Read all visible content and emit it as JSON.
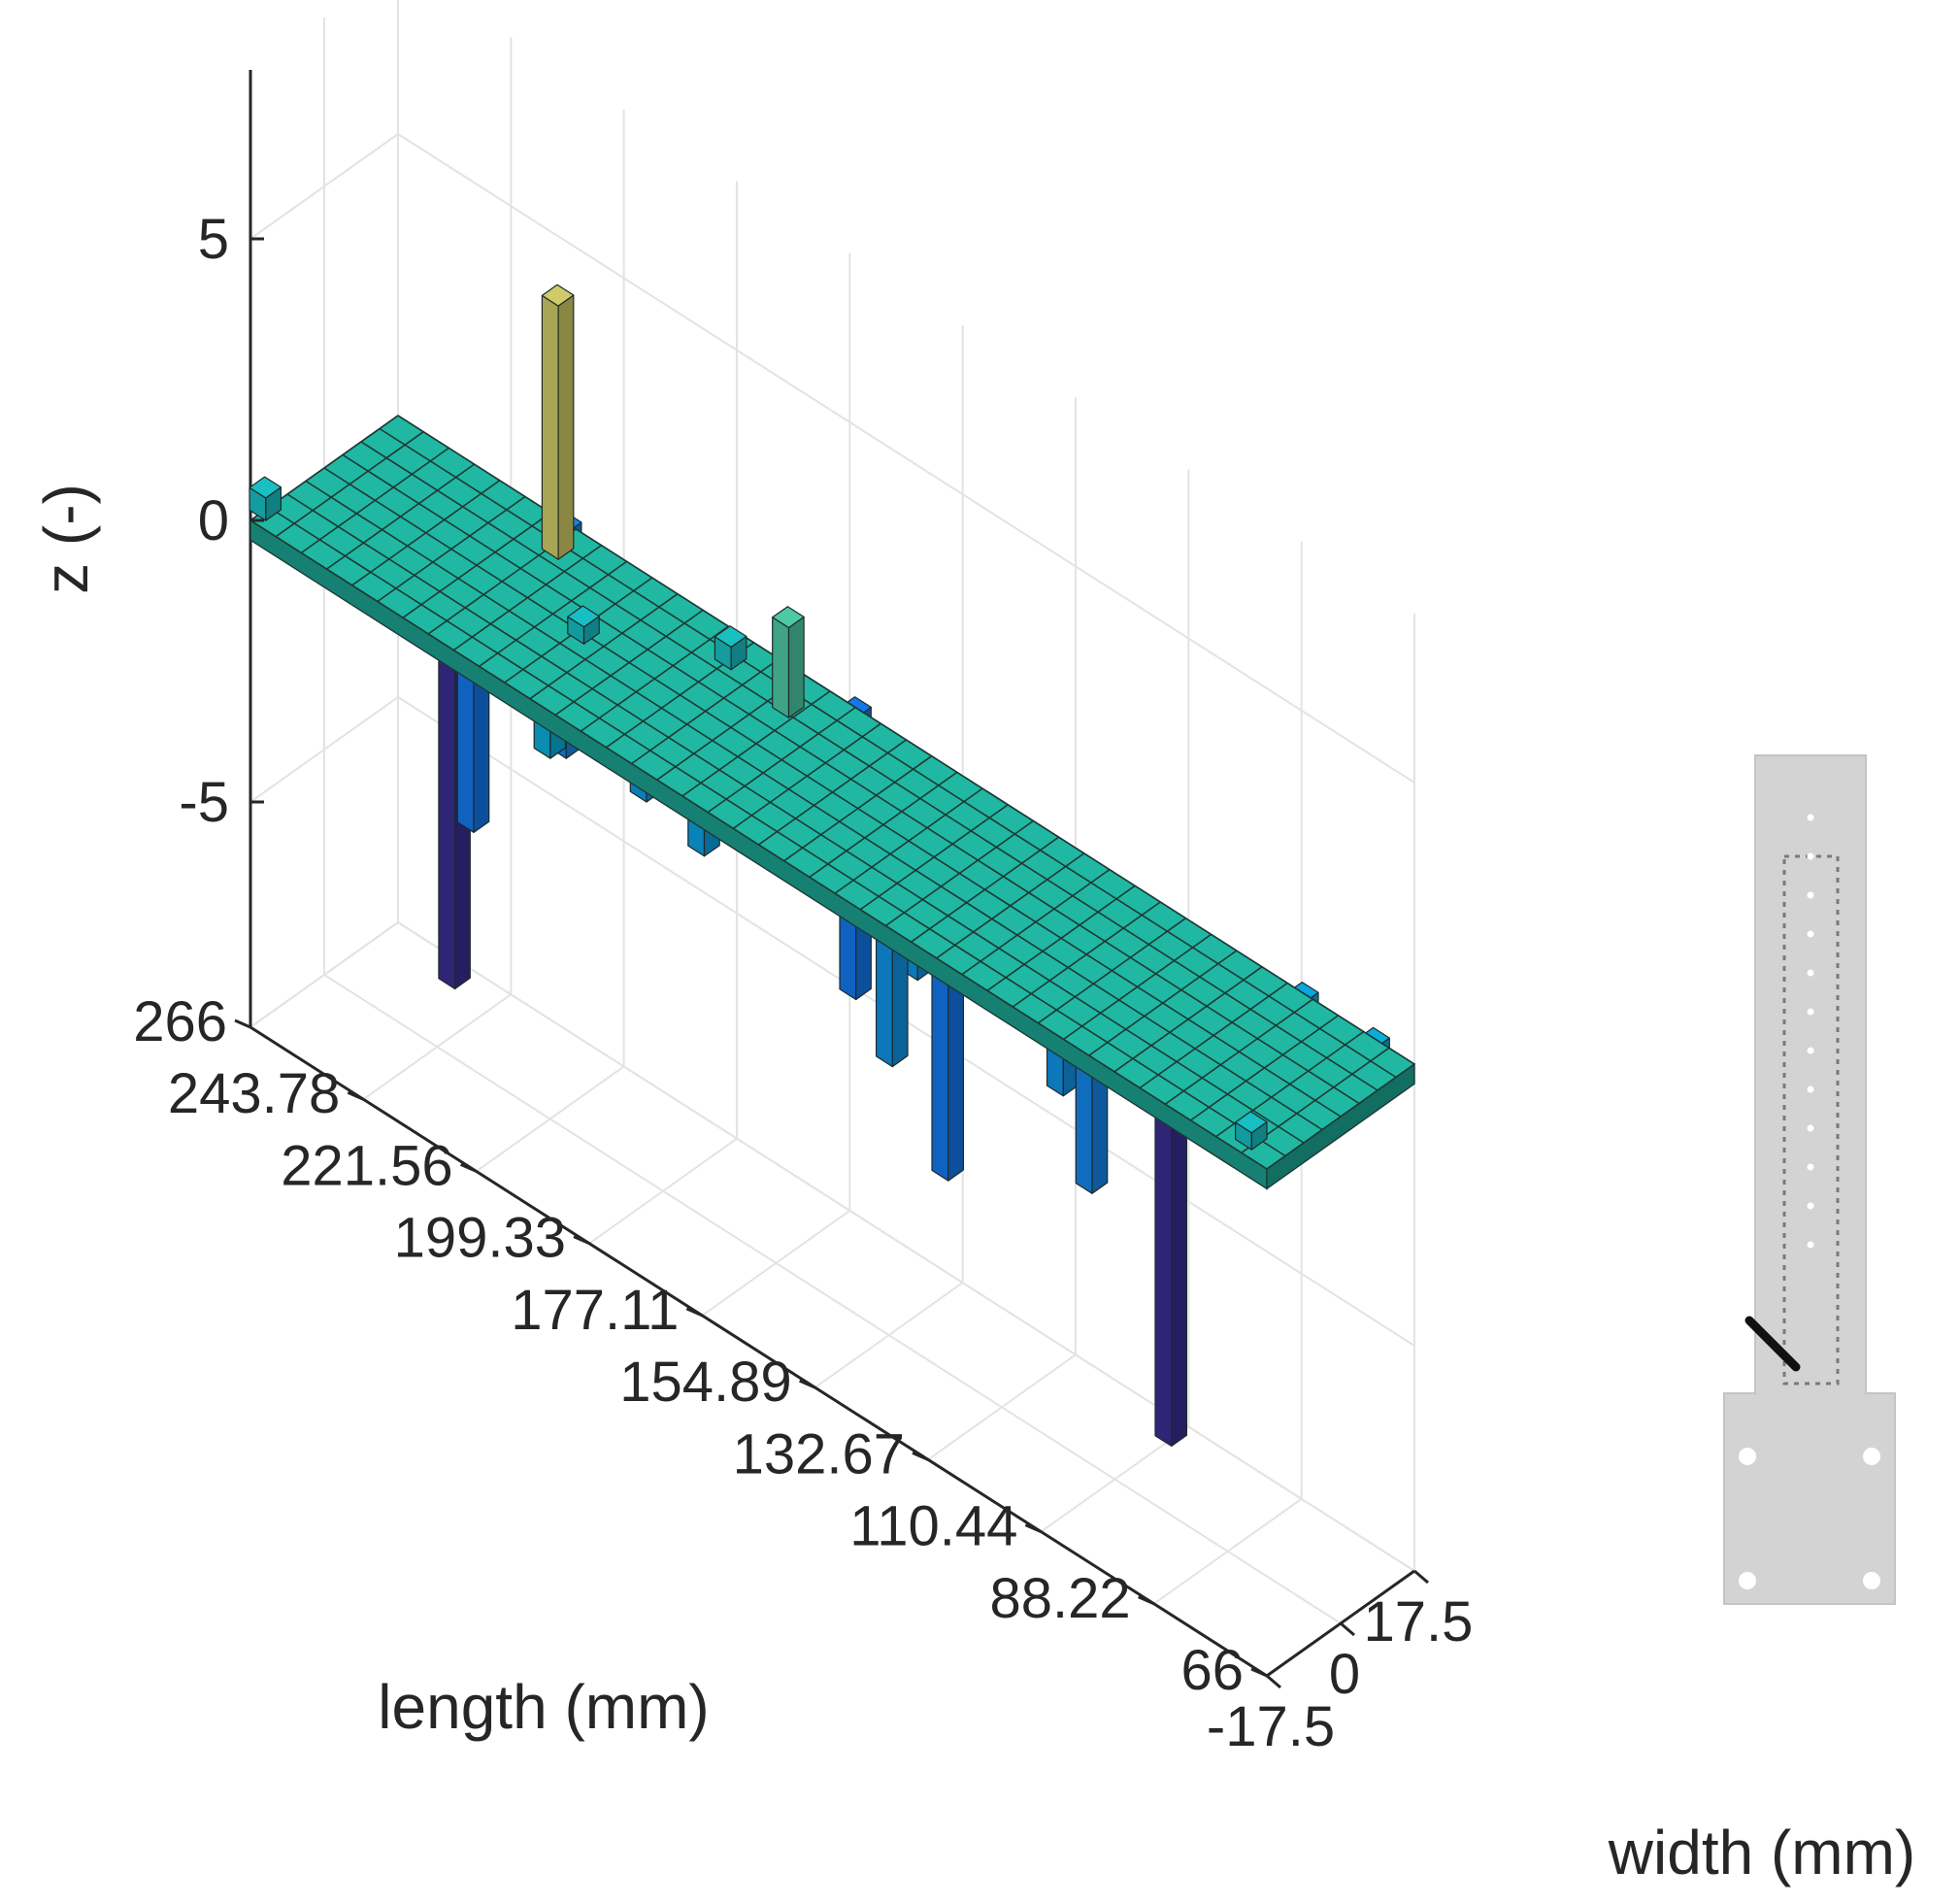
{
  "chart_data": {
    "type": "bar3d",
    "zlabel": "z (-)",
    "xlabel": "length (mm)",
    "ylabel": "width (mm)",
    "z_ticks": [
      "5",
      "0",
      "-5"
    ],
    "z_range": [
      -9,
      8
    ],
    "length_ticks": [
      "266",
      "243.78",
      "221.56",
      "199.33",
      "177.11",
      "154.89",
      "132.67",
      "110.44",
      "88.22",
      "66"
    ],
    "length_range": [
      66,
      266
    ],
    "width_ticks": [
      "-17.5",
      "0",
      "17.5"
    ],
    "width_range": [
      -17.5,
      17.5
    ],
    "grid": true,
    "colormap": "parula",
    "baseline_z": 0,
    "bars": [
      {
        "length": 266.0,
        "width": -14.0,
        "z": 0.4
      },
      {
        "length": 252.0,
        "width": 14.0,
        "z": -9.0
      },
      {
        "length": 240.0,
        "width": 4.0,
        "z": -5.0
      },
      {
        "length": 233.0,
        "width": 17.5,
        "z": -4.0
      },
      {
        "length": 230.0,
        "width": 12.0,
        "z": 4.5
      },
      {
        "length": 215.0,
        "width": 0.0,
        "z": 0.3
      },
      {
        "length": 210.0,
        "width": -14.0,
        "z": -1.0
      },
      {
        "length": 206.0,
        "width": 4.0,
        "z": -2.5
      },
      {
        "length": 196.0,
        "width": 12.0,
        "z": 0.4
      },
      {
        "length": 188.0,
        "width": -4.0,
        "z": -2.0
      },
      {
        "length": 183.0,
        "width": 10.0,
        "z": 1.6
      },
      {
        "length": 176.0,
        "width": 17.5,
        "z": -5.0
      },
      {
        "length": 172.0,
        "width": 4.0,
        "z": -1.5
      },
      {
        "length": 164.0,
        "width": 12.0,
        "z": -2.5
      },
      {
        "length": 156.0,
        "width": 8.0,
        "z": -3.0
      },
      {
        "length": 150.0,
        "width": -4.0,
        "z": -1.0
      },
      {
        "length": 146.0,
        "width": -10.0,
        "z": -3.0
      },
      {
        "length": 140.0,
        "width": -4.0,
        "z": -5.0
      },
      {
        "length": 124.0,
        "width": 4.0,
        "z": -3.0
      },
      {
        "length": 115.0,
        "width": 0.0,
        "z": -4.0
      },
      {
        "length": 111.0,
        "width": 14.0,
        "z": -9.0
      },
      {
        "length": 104.0,
        "width": -10.0,
        "z": -0.8
      },
      {
        "length": 100.0,
        "width": 8.0,
        "z": -1.0
      },
      {
        "length": 96.0,
        "width": 0.0,
        "z": -0.5
      },
      {
        "length": 88.0,
        "width": 17.5,
        "z": -1.5
      },
      {
        "length": 74.0,
        "width": 17.5,
        "z": -1.0
      },
      {
        "length": 72.0,
        "width": -14.0,
        "z": 0.3
      }
    ]
  },
  "inset": {
    "description_label": ""
  }
}
